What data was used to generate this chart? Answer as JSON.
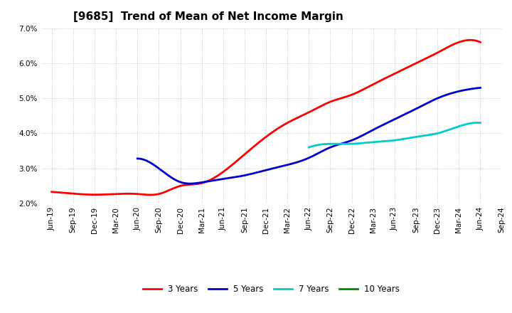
{
  "title": "[9685]  Trend of Mean of Net Income Margin",
  "ylim": [
    0.02,
    0.07
  ],
  "yticks": [
    0.02,
    0.03,
    0.04,
    0.05,
    0.06,
    0.07
  ],
  "ytick_labels": [
    "2.0%",
    "3.0%",
    "4.0%",
    "5.0%",
    "6.0%",
    "7.0%"
  ],
  "x_labels": [
    "Jun-19",
    "Sep-19",
    "Dec-19",
    "Mar-20",
    "Jun-20",
    "Sep-20",
    "Dec-20",
    "Mar-21",
    "Jun-21",
    "Sep-21",
    "Dec-21",
    "Mar-22",
    "Jun-22",
    "Sep-22",
    "Dec-22",
    "Mar-23",
    "Jun-23",
    "Sep-23",
    "Dec-23",
    "Mar-24",
    "Jun-24",
    "Sep-24"
  ],
  "series": {
    "3 Years": {
      "color": "#ff0000",
      "data_x": [
        0,
        1,
        2,
        3,
        4,
        5,
        6,
        7,
        8,
        9,
        10,
        11,
        12,
        13,
        14,
        15,
        16,
        17,
        18,
        19,
        20
      ],
      "data_y": [
        0.0233,
        0.0228,
        0.0225,
        0.0227,
        0.0227,
        0.0227,
        0.025,
        0.0258,
        0.029,
        0.034,
        0.039,
        0.043,
        0.046,
        0.049,
        0.051,
        0.054,
        0.057,
        0.06,
        0.063,
        0.066,
        0.066
      ]
    },
    "5 Years": {
      "color": "#0000cc",
      "data_x": [
        4,
        5,
        6,
        7,
        8,
        9,
        10,
        11,
        12,
        13,
        14,
        15,
        16,
        17,
        18,
        19,
        20
      ],
      "data_y": [
        0.0328,
        0.03,
        0.0261,
        0.026,
        0.027,
        0.028,
        0.0295,
        0.031,
        0.033,
        0.036,
        0.038,
        0.041,
        0.044,
        0.047,
        0.05,
        0.052,
        0.053
      ]
    },
    "7 Years": {
      "color": "#00cccc",
      "data_x": [
        12,
        13,
        14,
        15,
        16,
        17,
        18,
        19,
        20
      ],
      "data_y": [
        0.036,
        0.037,
        0.037,
        0.0375,
        0.038,
        0.039,
        0.04,
        0.042,
        0.043
      ]
    },
    "10 Years": {
      "color": "#008800",
      "data_x": [],
      "data_y": []
    }
  },
  "legend_order": [
    "3 Years",
    "5 Years",
    "7 Years",
    "10 Years"
  ],
  "background_color": "#ffffff",
  "grid_color": "#aaaaaa",
  "title_fontsize": 11,
  "tick_fontsize": 7.5,
  "legend_fontsize": 8.5,
  "linewidth": 2.0
}
